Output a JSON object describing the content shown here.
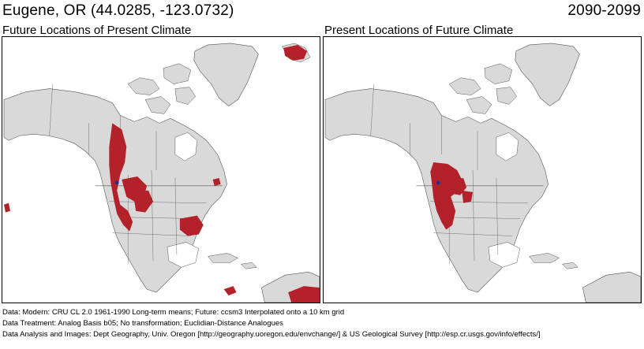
{
  "header": {
    "location_title": "Eugene, OR  (44.0285, -123.0732)",
    "period": "2090-2099"
  },
  "panels": [
    {
      "title": "Future Locations of Present Climate"
    },
    {
      "title": "Present Locations of Future Climate"
    }
  ],
  "footer": {
    "line1": "Data:  Modern: CRU CL 2.0 1961-1990 Long-term means; Future: ccsm3 Interpolated onto a 10 km grid",
    "line2": "Data Treatment:  Analog Basis b05; No transformation; Euclidian-Distance Analogues",
    "line3": "Data Analysis and Images:  Dept Geography, Univ. Oregon [http://geography.uoregon.edu/envchange/] & US Geological Survey [http://esp.cr.usgs.gov/info/effects/]"
  },
  "colors": {
    "land": "#d9d9d9",
    "highlight": "#b3212a",
    "site_marker": "#1a2fa0",
    "water": "#ffffff"
  }
}
